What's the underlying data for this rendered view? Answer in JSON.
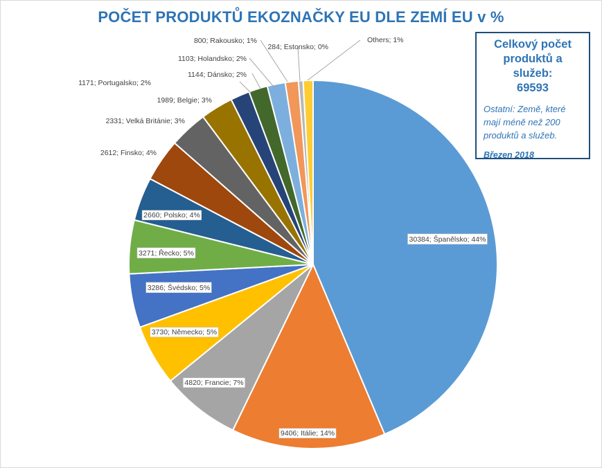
{
  "chart_data": {
    "type": "pie",
    "title": "POČET PRODUKTŮ EKOZNAČKY EU DLE ZEMÍ EU v %",
    "slices": [
      {
        "label": "30384; Španělsko; 44%",
        "value": 30384,
        "color": "#5b9bd5"
      },
      {
        "label": "9406; Itálie; 14%",
        "value": 9406,
        "color": "#ed7d31"
      },
      {
        "label": "4820; Francie; 7%",
        "value": 4820,
        "color": "#a5a5a5"
      },
      {
        "label": "3730; Německo; 5%",
        "value": 3730,
        "color": "#ffc000"
      },
      {
        "label": "3286; Švédsko; 5%",
        "value": 3286,
        "color": "#4472c4"
      },
      {
        "label": "3271; Řecko; 5%",
        "value": 3271,
        "color": "#70ad47"
      },
      {
        "label": "2660; Polsko; 4%",
        "value": 2660,
        "color": "#255e91"
      },
      {
        "label": "2612; Finsko; 4%",
        "value": 2612,
        "color": "#9e480e"
      },
      {
        "label": "2331; Velká Británie; 3%",
        "value": 2331,
        "color": "#636363"
      },
      {
        "label": "1989; Belgie; 3%",
        "value": 1989,
        "color": "#997300"
      },
      {
        "label": "1171; Portugalsko; 2%",
        "value": 1171,
        "color": "#264478"
      },
      {
        "label": "1144; Dánsko; 2%",
        "value": 1144,
        "color": "#43682b"
      },
      {
        "label": "1103; Holandsko; 2%",
        "value": 1103,
        "color": "#7cafdd"
      },
      {
        "label": "800; Rakousko; 1%",
        "value": 800,
        "color": "#f1975a"
      },
      {
        "label": "284; Estonsko; 0%",
        "value": 284,
        "color": "#b7b7b7"
      },
      {
        "label": "Others; 1%",
        "value": 602,
        "color": "#ffcd33"
      }
    ]
  },
  "infobox": {
    "title": "Celkový počet produktů a služeb:",
    "total": "69593",
    "note": "Ostatní: Země, které mají méně než 200 produktů a služeb.",
    "date": "Březen 2018"
  }
}
